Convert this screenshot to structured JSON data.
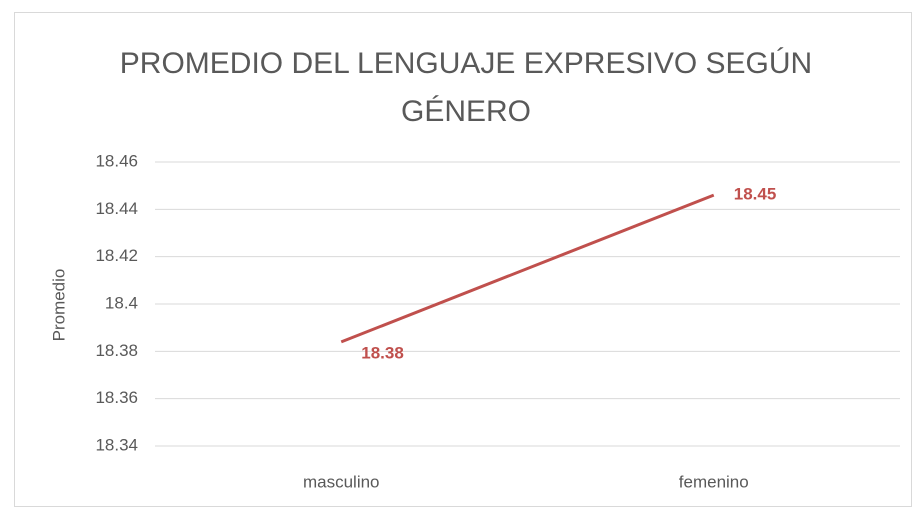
{
  "chart_data": {
    "type": "line",
    "title": "PROMEDIO DEL LENGUAJE EXPRESIVO SEGÚN GÉNERO",
    "y_label": "Promedio",
    "categories": [
      "masculino",
      "femenino"
    ],
    "series": [
      {
        "name": "Promedio",
        "color": "#c0504d",
        "values": [
          18.384,
          18.446
        ],
        "value_labels": [
          "18.38",
          "18.45"
        ]
      }
    ],
    "ylim": [
      18.34,
      18.46
    ],
    "yticks": [
      18.34,
      18.36,
      18.38,
      18.4,
      18.42,
      18.44,
      18.46
    ],
    "grid": true
  }
}
